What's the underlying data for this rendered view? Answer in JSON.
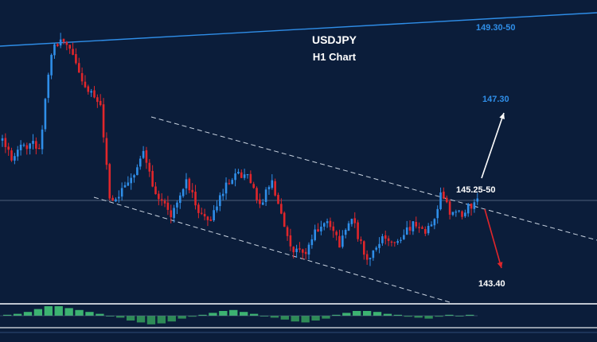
{
  "title": "USDJPY",
  "subtitle": "H1 Chart",
  "colors": {
    "background": "#0b1d3a",
    "bull": "#2f8ee8",
    "bear": "#e0262b",
    "channel": "#c9d3e0",
    "resistance": "#2f8ee8",
    "label_blue": "#2f8ee8",
    "label_white": "#ffffff",
    "arrow_up": "#ffffff",
    "arrow_down": "#e0262b",
    "hist_pos": "#3cb371",
    "hist_neg": "#2e8b57",
    "separator": "#c0c6d0"
  },
  "levels": {
    "resistance": "149.30-50",
    "target_up": "147.30",
    "pivot": "145.25-50",
    "target_down": "143.40"
  },
  "chart_data": {
    "type": "candlestick",
    "title": "USDJPY",
    "subtitle": "H1 Chart",
    "price_range": [
      142.9,
      150.1
    ],
    "path_keypoints": [
      [
        0,
        146.9
      ],
      [
        3,
        146.4
      ],
      [
        6,
        146.7
      ],
      [
        10,
        146.8
      ],
      [
        12,
        146.6
      ],
      [
        16,
        149.2
      ],
      [
        19,
        149.4
      ],
      [
        22,
        149.3
      ],
      [
        26,
        148.4
      ],
      [
        30,
        148.0
      ],
      [
        32,
        147.9
      ],
      [
        35,
        145.3
      ],
      [
        39,
        145.6
      ],
      [
        44,
        146.2
      ],
      [
        46,
        146.7
      ],
      [
        50,
        145.4
      ],
      [
        55,
        145.0
      ],
      [
        60,
        145.9
      ],
      [
        64,
        145.0
      ],
      [
        68,
        144.9
      ],
      [
        72,
        145.6
      ],
      [
        76,
        146.0
      ],
      [
        80,
        145.9
      ],
      [
        84,
        145.2
      ],
      [
        88,
        145.8
      ],
      [
        90,
        145.2
      ],
      [
        94,
        144.1
      ],
      [
        98,
        143.9
      ],
      [
        102,
        144.5
      ],
      [
        106,
        144.8
      ],
      [
        110,
        144.2
      ],
      [
        114,
        144.9
      ],
      [
        117,
        144.2
      ],
      [
        119,
        143.8
      ],
      [
        124,
        144.4
      ],
      [
        128,
        144.2
      ],
      [
        134,
        144.7
      ],
      [
        138,
        144.5
      ],
      [
        141,
        144.8
      ],
      [
        143,
        145.6
      ],
      [
        146,
        145.0
      ],
      [
        150,
        145.0
      ],
      [
        153,
        145.2
      ],
      [
        155,
        145.4
      ]
    ]
  },
  "indicator": {
    "histogram": [
      0.1,
      0.2,
      0.4,
      0.7,
      1.0,
      1.0,
      0.8,
      0.6,
      0.4,
      0.2,
      0.0,
      -0.2,
      -0.5,
      -0.7,
      -0.9,
      -0.8,
      -0.6,
      -0.3,
      -0.1,
      0.1,
      0.3,
      0.5,
      0.6,
      0.4,
      0.2,
      0.0,
      -0.2,
      -0.4,
      -0.6,
      -0.7,
      -0.5,
      -0.3,
      0.1,
      0.3,
      0.5,
      0.5,
      0.4,
      0.2,
      0.1,
      -0.1,
      -0.2,
      -0.3,
      -0.1,
      0.1,
      0.0,
      0.1
    ]
  }
}
